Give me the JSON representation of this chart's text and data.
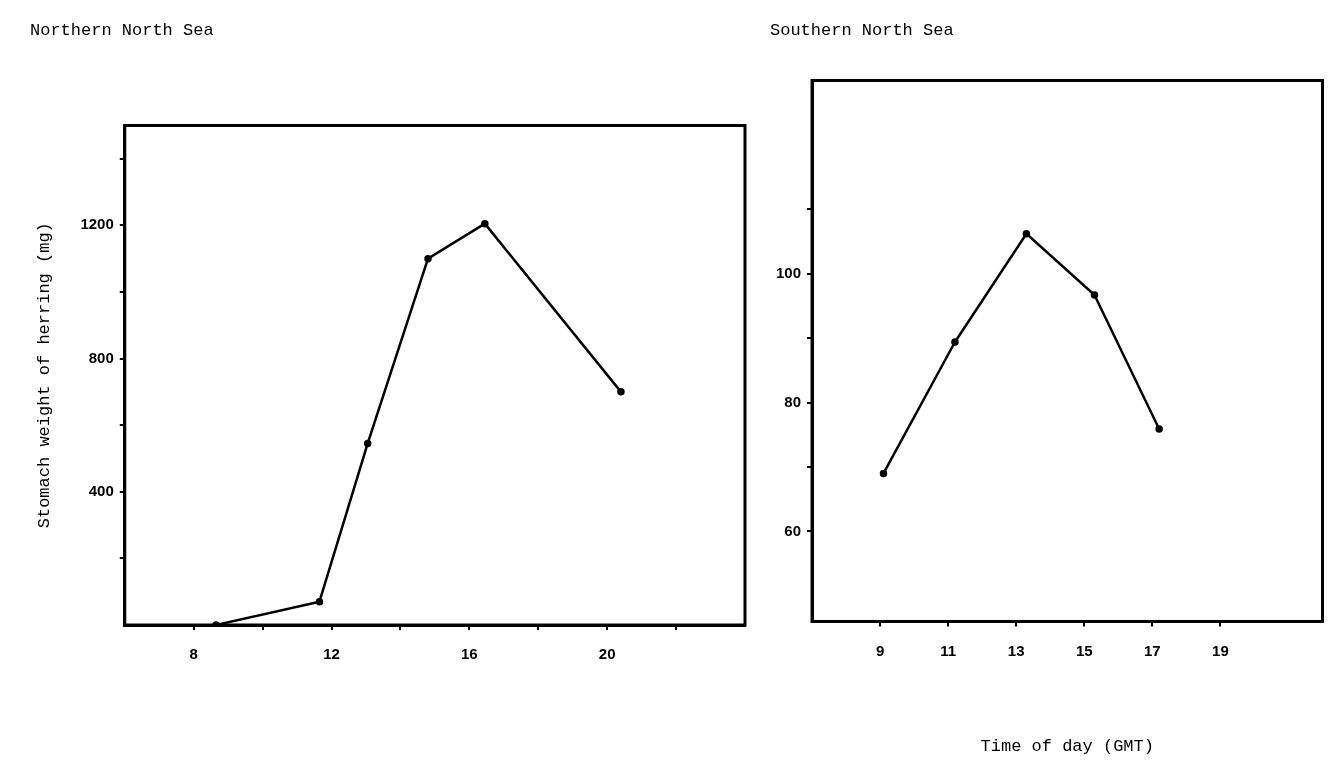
{
  "chart_data": [
    {
      "type": "line",
      "title": "Northern North Sea",
      "ylabel": "Stomach weight of herring (mg)",
      "x": [
        8.65,
        11.65,
        13.05,
        14.8,
        16.45,
        20.4
      ],
      "values": [
        0,
        70,
        545,
        1100,
        1205,
        700
      ],
      "color": "#000000",
      "marker": "circle",
      "grid": false,
      "xlim": [
        6,
        24
      ],
      "ylim": [
        0,
        1500
      ],
      "xticks": [
        8,
        {
          "value": 10,
          "label": null
        },
        12,
        {
          "value": 14,
          "label": null
        },
        16,
        {
          "value": 18,
          "label": null
        },
        20,
        {
          "value": 22,
          "label": null
        }
      ],
      "yticks": [
        {
          "value": 200,
          "label": null
        },
        400,
        {
          "value": 600,
          "label": null
        },
        800,
        {
          "value": 1000,
          "label": null
        },
        1200,
        {
          "value": 1400,
          "label": null
        }
      ]
    },
    {
      "type": "line",
      "title": "Southern North Sea",
      "xlabel": "Time of day (GMT)",
      "x": [
        9.1,
        11.2,
        13.3,
        15.3,
        17.2
      ],
      "values": [
        69,
        89.4,
        106.2,
        96.7,
        75.9
      ],
      "color": "#000000",
      "marker": "circle",
      "grid": false,
      "xlim": [
        7,
        22
      ],
      "ylim": [
        46,
        130
      ],
      "xticks": [
        9,
        11,
        13,
        15,
        17,
        19
      ],
      "yticks": [
        60,
        {
          "value": 70,
          "label": null
        },
        80,
        {
          "value": 90,
          "label": null
        },
        100,
        {
          "value": 110,
          "label": null
        }
      ]
    }
  ]
}
